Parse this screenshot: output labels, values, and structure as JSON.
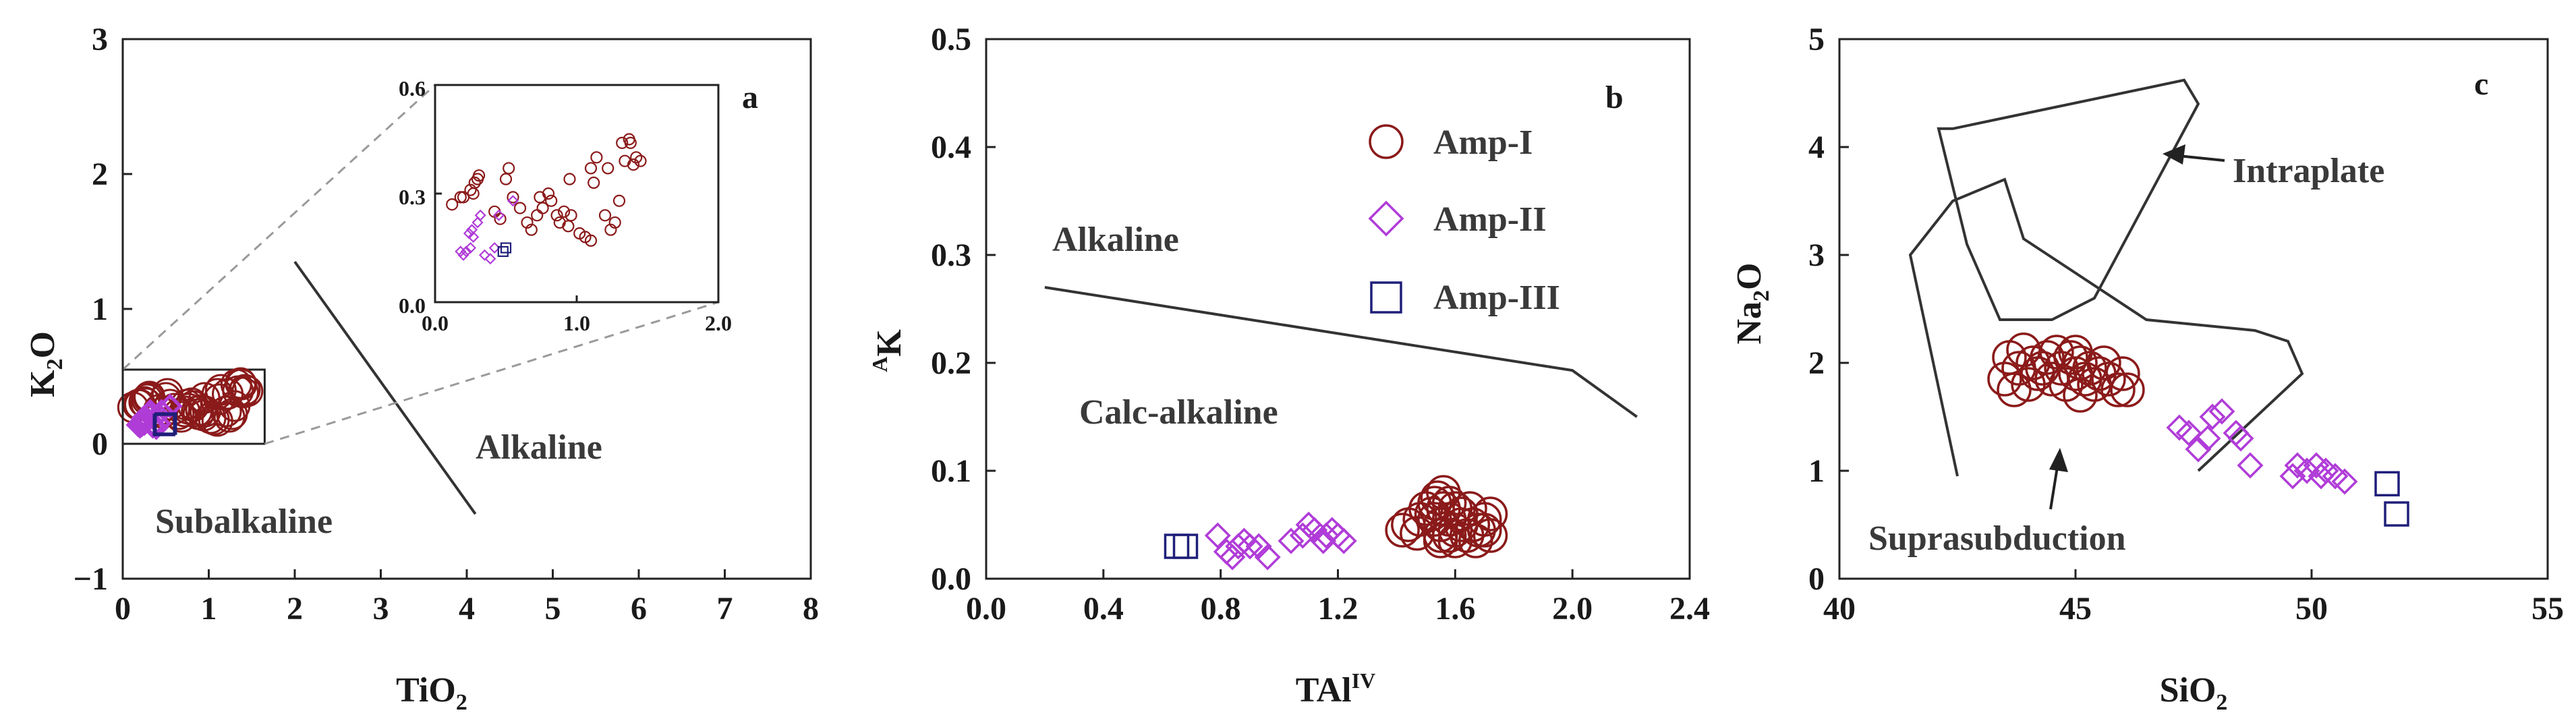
{
  "colors": {
    "amp_i": "#8b1a1a",
    "amp_ii": "#b03cd8",
    "amp_iii": "#1f1f7a",
    "line": "#333333",
    "dash": "#9a9a9a"
  },
  "chart_data": [
    {
      "type": "scatter",
      "panel": "a",
      "xlabel": "TiO",
      "xlabel_sub": "2",
      "ylabel": "K",
      "ylabel_sub": "2",
      "ylabel_tail": "O",
      "xlim": [
        0,
        8
      ],
      "ylim": [
        -1,
        3
      ],
      "x_ticks": [
        "0",
        "1",
        "2",
        "3",
        "4",
        "5",
        "6",
        "7",
        "8"
      ],
      "y_ticks": [
        "-1",
        "0",
        "1",
        "2",
        "3"
      ],
      "annotations": [
        "Alkaline",
        "Subalkaline"
      ],
      "divider": [
        [
          2.0,
          1.35
        ],
        [
          4.1,
          -0.52
        ]
      ],
      "zoom_box": [
        [
          0,
          0
        ],
        [
          1.65,
          0.55
        ]
      ],
      "inset": {
        "xlim": [
          0,
          2.0
        ],
        "ylim": [
          0,
          0.6
        ],
        "x_ticks": [
          "0.0",
          "1.0",
          "2.0"
        ],
        "y_ticks": [
          "0.0",
          "0.3",
          "0.6"
        ]
      },
      "series": [
        {
          "name": "Amp-I",
          "marker": "circle",
          "points": [
            [
              0.12,
              0.27
            ],
            [
              0.18,
              0.29
            ],
            [
              0.2,
              0.29
            ],
            [
              0.25,
              0.31
            ],
            [
              0.27,
              0.3
            ],
            [
              0.28,
              0.33
            ],
            [
              0.3,
              0.34
            ],
            [
              0.31,
              0.35
            ],
            [
              0.42,
              0.25
            ],
            [
              0.46,
              0.23
            ],
            [
              0.5,
              0.34
            ],
            [
              0.52,
              0.37
            ],
            [
              0.55,
              0.29
            ],
            [
              0.6,
              0.26
            ],
            [
              0.65,
              0.22
            ],
            [
              0.68,
              0.2
            ],
            [
              0.72,
              0.24
            ],
            [
              0.74,
              0.29
            ],
            [
              0.76,
              0.26
            ],
            [
              0.8,
              0.3
            ],
            [
              0.82,
              0.28
            ],
            [
              0.86,
              0.24
            ],
            [
              0.88,
              0.22
            ],
            [
              0.91,
              0.25
            ],
            [
              0.94,
              0.21
            ],
            [
              0.95,
              0.34
            ],
            [
              0.96,
              0.24
            ],
            [
              1.02,
              0.19
            ],
            [
              1.06,
              0.18
            ],
            [
              1.1,
              0.17
            ],
            [
              1.1,
              0.37
            ],
            [
              1.12,
              0.33
            ],
            [
              1.14,
              0.4
            ],
            [
              1.2,
              0.24
            ],
            [
              1.22,
              0.37
            ],
            [
              1.24,
              0.2
            ],
            [
              1.27,
              0.22
            ],
            [
              1.3,
              0.28
            ],
            [
              1.32,
              0.44
            ],
            [
              1.34,
              0.39
            ],
            [
              1.37,
              0.45
            ],
            [
              1.38,
              0.44
            ],
            [
              1.4,
              0.38
            ],
            [
              1.42,
              0.4
            ],
            [
              1.45,
              0.39
            ]
          ]
        },
        {
          "name": "Amp-II",
          "marker": "diamond",
          "points": [
            [
              0.18,
              0.14
            ],
            [
              0.2,
              0.13
            ],
            [
              0.22,
              0.14
            ],
            [
              0.24,
              0.19
            ],
            [
              0.25,
              0.15
            ],
            [
              0.26,
              0.2
            ],
            [
              0.27,
              0.18
            ],
            [
              0.3,
              0.22
            ],
            [
              0.32,
              0.24
            ],
            [
              0.35,
              0.13
            ],
            [
              0.39,
              0.12
            ],
            [
              0.42,
              0.15
            ],
            [
              0.45,
              0.24
            ],
            [
              0.55,
              0.28
            ]
          ]
        },
        {
          "name": "Amp-III",
          "marker": "square",
          "points": [
            [
              0.48,
              0.14
            ],
            [
              0.5,
              0.15
            ]
          ]
        }
      ]
    },
    {
      "type": "scatter",
      "panel": "b",
      "xlabel": "TAl",
      "xlabel_sup": "IV",
      "ylabel": "K",
      "ylabel_sup": "A",
      "xlim": [
        0,
        2.4
      ],
      "ylim": [
        0,
        0.5
      ],
      "x_ticks": [
        "0.0",
        "0.4",
        "0.8",
        "1.2",
        "1.6",
        "2.0",
        "2.4"
      ],
      "y_ticks": [
        "0.0",
        "0.1",
        "0.2",
        "0.3",
        "0.4",
        "0.5"
      ],
      "annotations": [
        "Alkaline",
        "Calc-alkaline"
      ],
      "divider": [
        [
          0.2,
          0.27
        ],
        [
          2.0,
          0.193
        ],
        [
          2.22,
          0.15
        ]
      ],
      "legend": [
        "Amp-I",
        "Amp-II",
        "Amp-III"
      ],
      "series": [
        {
          "name": "Amp-I",
          "marker": "circle",
          "points": [
            [
              1.42,
              0.045
            ],
            [
              1.44,
              0.05
            ],
            [
              1.47,
              0.042
            ],
            [
              1.48,
              0.055
            ],
            [
              1.5,
              0.065
            ],
            [
              1.52,
              0.06
            ],
            [
              1.53,
              0.055
            ],
            [
              1.53,
              0.07
            ],
            [
              1.54,
              0.075
            ],
            [
              1.55,
              0.04
            ],
            [
              1.55,
              0.05
            ],
            [
              1.56,
              0.065
            ],
            [
              1.56,
              0.08
            ],
            [
              1.58,
              0.04
            ],
            [
              1.58,
              0.055
            ],
            [
              1.58,
              0.07
            ],
            [
              1.6,
              0.045
            ],
            [
              1.6,
              0.065
            ],
            [
              1.6,
              0.035
            ],
            [
              1.62,
              0.05
            ],
            [
              1.62,
              0.06
            ],
            [
              1.64,
              0.04
            ],
            [
              1.65,
              0.065
            ],
            [
              1.66,
              0.05
            ],
            [
              1.67,
              0.035
            ],
            [
              1.68,
              0.045
            ],
            [
              1.7,
              0.055
            ],
            [
              1.7,
              0.045
            ],
            [
              1.72,
              0.06
            ],
            [
              1.72,
              0.04
            ],
            [
              1.55,
              0.035
            ]
          ]
        },
        {
          "name": "Amp-II",
          "marker": "diamond",
          "points": [
            [
              0.79,
              0.04
            ],
            [
              0.82,
              0.025
            ],
            [
              0.84,
              0.02
            ],
            [
              0.86,
              0.03
            ],
            [
              0.88,
              0.035
            ],
            [
              0.9,
              0.03
            ],
            [
              0.93,
              0.03
            ],
            [
              0.96,
              0.02
            ],
            [
              1.04,
              0.035
            ],
            [
              1.08,
              0.04
            ],
            [
              1.1,
              0.05
            ],
            [
              1.12,
              0.045
            ],
            [
              1.15,
              0.035
            ],
            [
              1.16,
              0.04
            ],
            [
              1.18,
              0.045
            ],
            [
              1.2,
              0.04
            ],
            [
              1.22,
              0.035
            ]
          ]
        },
        {
          "name": "Amp-III",
          "marker": "square",
          "points": [
            [
              0.65,
              0.03
            ],
            [
              0.68,
              0.03
            ]
          ]
        }
      ]
    },
    {
      "type": "scatter",
      "panel": "c",
      "xlabel": "SiO",
      "xlabel_sub": "2",
      "ylabel": "Na",
      "ylabel_sub": "2",
      "ylabel_tail": "O",
      "xlim": [
        40,
        55
      ],
      "ylim": [
        0,
        5
      ],
      "x_ticks": [
        "40",
        "45",
        "50",
        "55"
      ],
      "y_ticks": [
        "0",
        "1",
        "2",
        "3",
        "4",
        "5"
      ],
      "annotations": [
        "Intraplate",
        "Suprasubduction"
      ],
      "intraplate_field": [
        [
          42.4,
          4.17
        ],
        [
          47.3,
          4.62
        ],
        [
          47.6,
          4.4
        ],
        [
          45.4,
          2.6
        ],
        [
          44.5,
          2.4
        ],
        [
          43.4,
          2.4
        ],
        [
          42.7,
          3.1
        ],
        [
          42.1,
          4.17
        ]
      ],
      "suprasubduction_field": [
        [
          42.5,
          0.95
        ],
        [
          41.5,
          3.0
        ],
        [
          42.4,
          3.5
        ],
        [
          43.5,
          3.7
        ],
        [
          43.9,
          3.15
        ],
        [
          46.5,
          2.4
        ],
        [
          48.8,
          2.3
        ],
        [
          49.5,
          2.2
        ],
        [
          49.8,
          1.9
        ],
        [
          47.6,
          1.0
        ]
      ],
      "series": [
        {
          "name": "Amp-I",
          "marker": "circle",
          "points": [
            [
              43.5,
              1.85
            ],
            [
              43.6,
              2.05
            ],
            [
              43.7,
              1.75
            ],
            [
              43.8,
              1.95
            ],
            [
              43.9,
              2.12
            ],
            [
              44.0,
              1.8
            ],
            [
              44.1,
              2.0
            ],
            [
              44.2,
              1.9
            ],
            [
              44.4,
              2.05
            ],
            [
              44.5,
              1.85
            ],
            [
              44.6,
              2.1
            ],
            [
              44.7,
              1.95
            ],
            [
              44.8,
              1.8
            ],
            [
              44.9,
              2.05
            ],
            [
              45.0,
              1.9
            ],
            [
              45.1,
              1.7
            ],
            [
              45.1,
              2.0
            ],
            [
              45.2,
              1.85
            ],
            [
              45.3,
              1.95
            ],
            [
              45.4,
              1.8
            ],
            [
              45.5,
              1.9
            ],
            [
              45.6,
              2.0
            ],
            [
              45.7,
              1.85
            ],
            [
              45.9,
              1.75
            ],
            [
              46.0,
              1.9
            ],
            [
              46.1,
              1.75
            ],
            [
              44.3,
              1.95
            ],
            [
              45.0,
              2.1
            ]
          ]
        },
        {
          "name": "Amp-II",
          "marker": "diamond",
          "points": [
            [
              47.2,
              1.4
            ],
            [
              47.4,
              1.35
            ],
            [
              47.6,
              1.2
            ],
            [
              47.8,
              1.3
            ],
            [
              47.9,
              1.5
            ],
            [
              48.1,
              1.55
            ],
            [
              48.4,
              1.35
            ],
            [
              48.5,
              1.3
            ],
            [
              48.7,
              1.05
            ],
            [
              49.6,
              0.95
            ],
            [
              49.7,
              1.05
            ],
            [
              49.9,
              1.0
            ],
            [
              50.1,
              1.05
            ],
            [
              50.2,
              0.95
            ],
            [
              50.3,
              1.0
            ],
            [
              50.5,
              0.95
            ],
            [
              50.7,
              0.9
            ]
          ]
        },
        {
          "name": "Amp-III",
          "marker": "square",
          "points": [
            [
              51.6,
              0.88
            ],
            [
              51.8,
              0.6
            ]
          ]
        }
      ]
    }
  ]
}
